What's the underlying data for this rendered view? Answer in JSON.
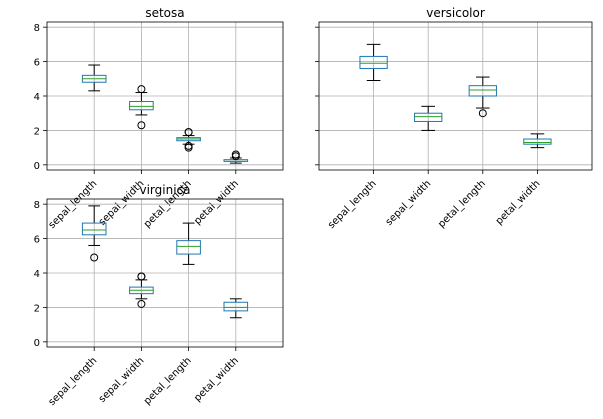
{
  "chart_data": [
    {
      "type": "boxplot",
      "title": "setosa",
      "categories": [
        "sepal_length",
        "sepal_width",
        "petal_length",
        "petal_width"
      ],
      "ylim": [
        -0.3,
        8.3
      ],
      "yticks": [
        0,
        2,
        4,
        6,
        8
      ],
      "show_xticklabels": true,
      "show_yticklabels": true,
      "grid": true,
      "boxes": [
        {
          "whislo": 4.3,
          "q1": 4.8,
          "med": 5.0,
          "q3": 5.2,
          "whishi": 5.8,
          "fliers": []
        },
        {
          "whislo": 2.9,
          "q1": 3.2,
          "med": 3.4,
          "q3": 3.68,
          "whishi": 4.2,
          "fliers": [
            2.3,
            4.4
          ]
        },
        {
          "whislo": 1.2,
          "q1": 1.4,
          "med": 1.5,
          "q3": 1.58,
          "whishi": 1.7,
          "fliers": [
            1.0,
            1.1,
            1.9,
            1.9
          ]
        },
        {
          "whislo": 0.1,
          "q1": 0.2,
          "med": 0.2,
          "q3": 0.3,
          "whishi": 0.4,
          "fliers": [
            0.5,
            0.6
          ]
        }
      ]
    },
    {
      "type": "boxplot",
      "title": "versicolor",
      "categories": [
        "sepal_length",
        "sepal_width",
        "petal_length",
        "petal_width"
      ],
      "ylim": [
        -0.3,
        8.3
      ],
      "yticks": [
        0,
        2,
        4,
        6,
        8
      ],
      "show_xticklabels": true,
      "show_yticklabels": false,
      "grid": true,
      "boxes": [
        {
          "whislo": 4.9,
          "q1": 5.6,
          "med": 5.9,
          "q3": 6.3,
          "whishi": 7.0,
          "fliers": []
        },
        {
          "whislo": 2.0,
          "q1": 2.52,
          "med": 2.8,
          "q3": 3.0,
          "whishi": 3.4,
          "fliers": []
        },
        {
          "whislo": 3.3,
          "q1": 4.0,
          "med": 4.35,
          "q3": 4.6,
          "whishi": 5.1,
          "fliers": [
            3.0
          ]
        },
        {
          "whislo": 1.0,
          "q1": 1.2,
          "med": 1.3,
          "q3": 1.5,
          "whishi": 1.8,
          "fliers": []
        }
      ]
    },
    {
      "type": "boxplot",
      "title": "virginica",
      "categories": [
        "sepal_length",
        "sepal_width",
        "petal_length",
        "petal_width"
      ],
      "ylim": [
        -0.3,
        8.3
      ],
      "yticks": [
        0,
        2,
        4,
        6,
        8
      ],
      "show_xticklabels": true,
      "show_yticklabels": true,
      "grid": true,
      "boxes": [
        {
          "whislo": 5.6,
          "q1": 6.22,
          "med": 6.5,
          "q3": 6.9,
          "whishi": 7.9,
          "fliers": [
            4.9
          ]
        },
        {
          "whislo": 2.5,
          "q1": 2.8,
          "med": 3.0,
          "q3": 3.18,
          "whishi": 3.6,
          "fliers": [
            2.2,
            3.8,
            3.8
          ]
        },
        {
          "whislo": 4.5,
          "q1": 5.1,
          "med": 5.55,
          "q3": 5.88,
          "whishi": 6.9,
          "fliers": []
        },
        {
          "whislo": 1.4,
          "q1": 1.8,
          "med": 2.0,
          "q3": 2.3,
          "whishi": 2.5,
          "fliers": []
        }
      ]
    }
  ],
  "colors": {
    "box": "#1f77b4",
    "median": "#2ca02c",
    "whisker": "#000000",
    "flier": "#000000",
    "grid": "#b0b0b0",
    "axes": "#000000"
  }
}
